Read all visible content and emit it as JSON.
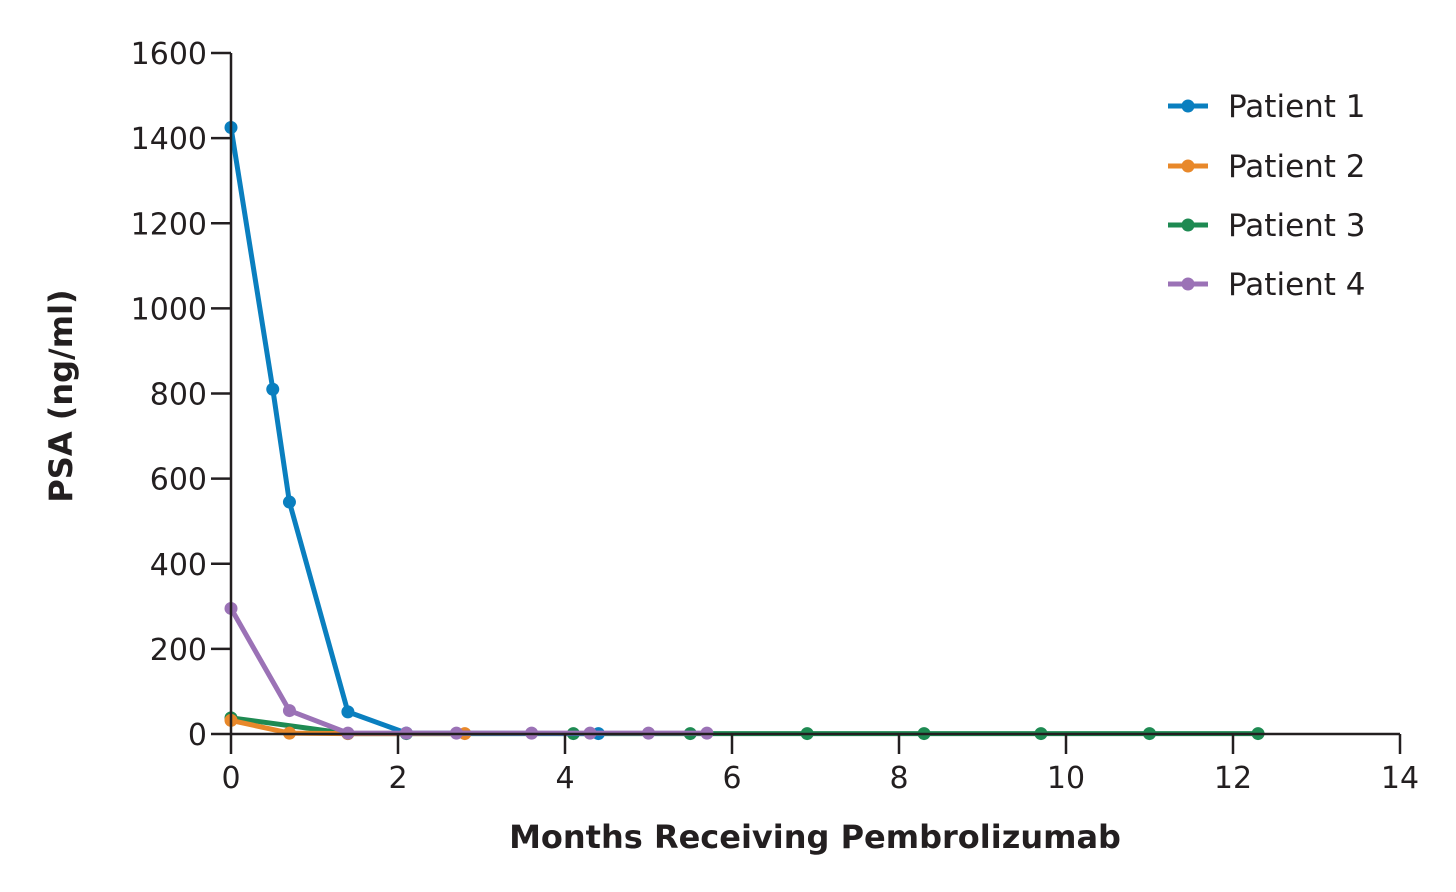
{
  "chart_data": {
    "type": "line",
    "title": "",
    "xlabel": "Months Receiving Pembrolizumab",
    "ylabel": "PSA (ng/ml)",
    "xlim": [
      0,
      14
    ],
    "ylim": [
      0,
      1600
    ],
    "xticks": [
      0,
      2,
      4,
      6,
      8,
      10,
      12,
      14
    ],
    "yticks": [
      0,
      200,
      400,
      600,
      800,
      1000,
      1200,
      1400,
      1600
    ],
    "grid": false,
    "legend_position": "top-right",
    "series": [
      {
        "name": "Patient 1",
        "color": "#0a7fbf",
        "x": [
          0,
          0.5,
          0.7,
          1.4,
          2.1,
          4.4
        ],
        "y": [
          1425,
          810,
          545,
          52,
          2,
          1
        ]
      },
      {
        "name": "Patient 2",
        "color": "#e8882a",
        "x": [
          0,
          0.7,
          1.4,
          2.8
        ],
        "y": [
          32,
          2,
          1,
          1
        ]
      },
      {
        "name": "Patient 3",
        "color": "#1e8a52",
        "x": [
          0,
          1.4,
          2.1,
          4.1,
          5.5,
          6.9,
          8.3,
          9.7,
          11.0,
          12.3
        ],
        "y": [
          38,
          1,
          1,
          1,
          1,
          1,
          1,
          1,
          1,
          1
        ]
      },
      {
        "name": "Patient 4",
        "color": "#9b72b6",
        "x": [
          0,
          0.7,
          1.4,
          2.1,
          2.7,
          3.6,
          4.3,
          5.0,
          5.7
        ],
        "y": [
          295,
          55,
          2,
          2,
          2,
          2,
          2,
          2,
          2
        ]
      }
    ]
  }
}
